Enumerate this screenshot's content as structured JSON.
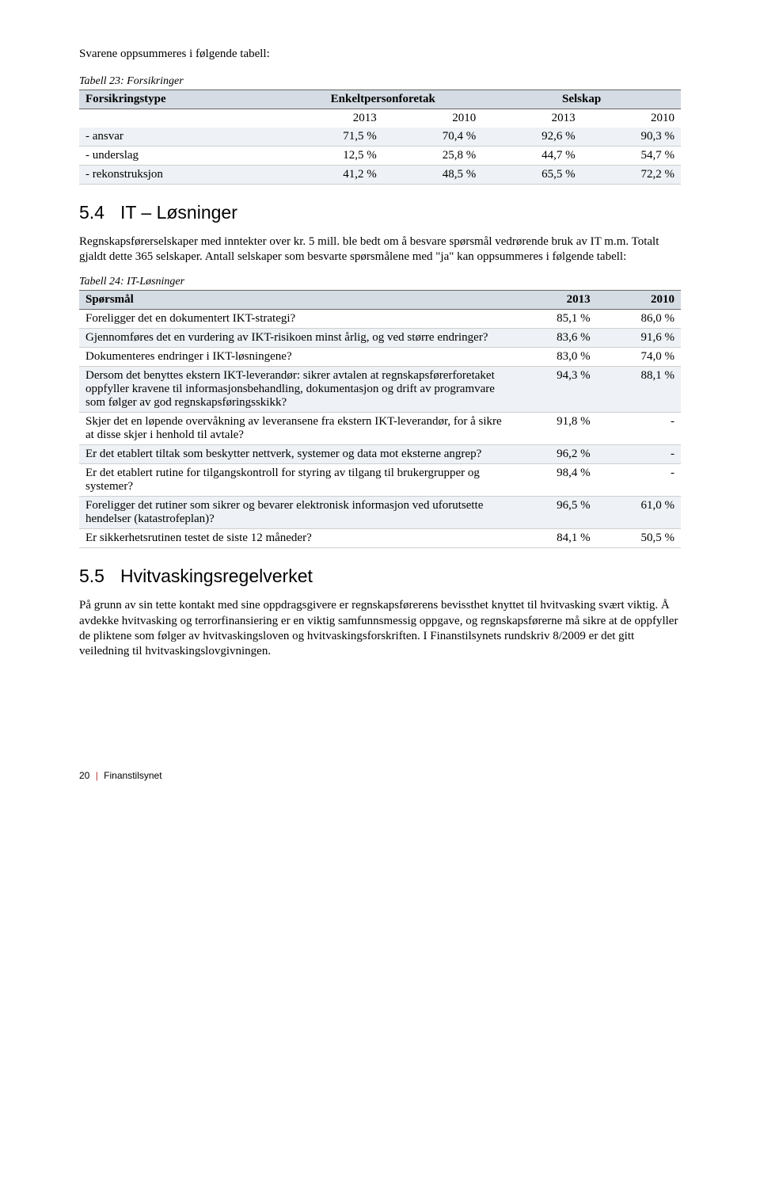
{
  "intro1": "Svarene oppsummeres i følgende tabell:",
  "tbl23": {
    "caption": "Tabell 23: Forsikringer",
    "headers": [
      "Forsikringstype",
      "Enkeltpersonforetak",
      "Selskap"
    ],
    "years": [
      "2013",
      "2010",
      "2013",
      "2010"
    ],
    "rows": [
      {
        "label": "- ansvar",
        "v": [
          "71,5 %",
          "70,4 %",
          "92,6 %",
          "90,3 %"
        ]
      },
      {
        "label": "- underslag",
        "v": [
          "12,5 %",
          "25,8 %",
          "44,7 %",
          "54,7 %"
        ]
      },
      {
        "label": "- rekonstruksjon",
        "v": [
          "41,2 %",
          "48,5 %",
          "65,5 %",
          "72,2 %"
        ]
      }
    ],
    "col_widths": [
      "34%",
      "16.5%",
      "16.5%",
      "16.5%",
      "16.5%"
    ],
    "header_bg": "#d5dce4",
    "alt_bg": "#eef1f5",
    "border_color": "#cfcfcf",
    "font_size": 15
  },
  "sec54": {
    "num": "5.4",
    "title": "IT – Løsninger",
    "intro": "Regnskapsførerselskaper med inntekter over kr. 5 mill. ble bedt om å besvare spørsmål vedrørende bruk av IT m.m. Totalt gjaldt dette 365 selskaper. Antall selskaper som besvarte spørsmålene med \"ja\" kan oppsummeres i følgende tabell:"
  },
  "tbl24": {
    "caption": "Tabell 24: IT-Løsninger",
    "headers": [
      "Spørsmål",
      "2013",
      "2010"
    ],
    "col_widths": [
      "72%",
      "14%",
      "14%"
    ],
    "header_bg": "#d5dce4",
    "alt_bg": "#eef1f5",
    "border_color": "#cfcfcf",
    "font_size": 15,
    "rows": [
      {
        "q": "Foreligger det en dokumentert IKT-strategi?",
        "v": [
          "85,1 %",
          "86,0 %"
        ]
      },
      {
        "q": "Gjennomføres det en vurdering av IKT-risikoen minst årlig, og ved større endringer?",
        "v": [
          "83,6 %",
          "91,6 %"
        ]
      },
      {
        "q": "Dokumenteres endringer i IKT-løsningene?",
        "v": [
          "83,0 %",
          "74,0 %"
        ]
      },
      {
        "q": "Dersom det benyttes ekstern IKT-leverandør: sikrer avtalen at regnskapsførerforetaket oppfyller kravene til informasjonsbehandling, dokumentasjon og drift av programvare som følger av god regnskapsføringsskikk?",
        "v": [
          "94,3 %",
          "88,1 %"
        ]
      },
      {
        "q": "Skjer det en løpende overvåkning av leveransene fra ekstern IKT-leverandør, for å sikre at disse skjer i henhold til avtale?",
        "v": [
          "91,8 %",
          "-"
        ]
      },
      {
        "q": "Er det etablert tiltak som beskytter nettverk, systemer og data mot eksterne angrep?",
        "v": [
          "96,2 %",
          "-"
        ]
      },
      {
        "q": "Er det etablert rutine for tilgangskontroll for styring av tilgang til brukergrupper og systemer?",
        "v": [
          "98,4 %",
          "-"
        ]
      },
      {
        "q": "Foreligger det rutiner som sikrer og bevarer elektronisk informasjon ved uforutsette hendelser (katastrofeplan)?",
        "v": [
          "96,5 %",
          "61,0 %"
        ]
      },
      {
        "q": "Er sikkerhetsrutinen testet de siste 12 måneder?",
        "v": [
          "84,1 %",
          "50,5 %"
        ]
      }
    ]
  },
  "sec55": {
    "num": "5.5",
    "title": "Hvitvaskingsregelverket",
    "body": "På grunn av sin tette kontakt med sine oppdragsgivere er regnskapsførerens bevissthet knyttet til hvitvasking svært viktig. Å avdekke hvitvasking og terrorfinansiering er en viktig samfunnsmessig oppgave, og regnskapsførerne må sikre at de oppfyller de pliktene som følger av hvitvaskingsloven og hvitvaskingsforskriften. I Finanstilsynets rundskriv 8/2009 er det gitt veiledning til hvitvaskingslovgivningen."
  },
  "footer": {
    "page": "20",
    "org": "Finanstilsynet"
  }
}
